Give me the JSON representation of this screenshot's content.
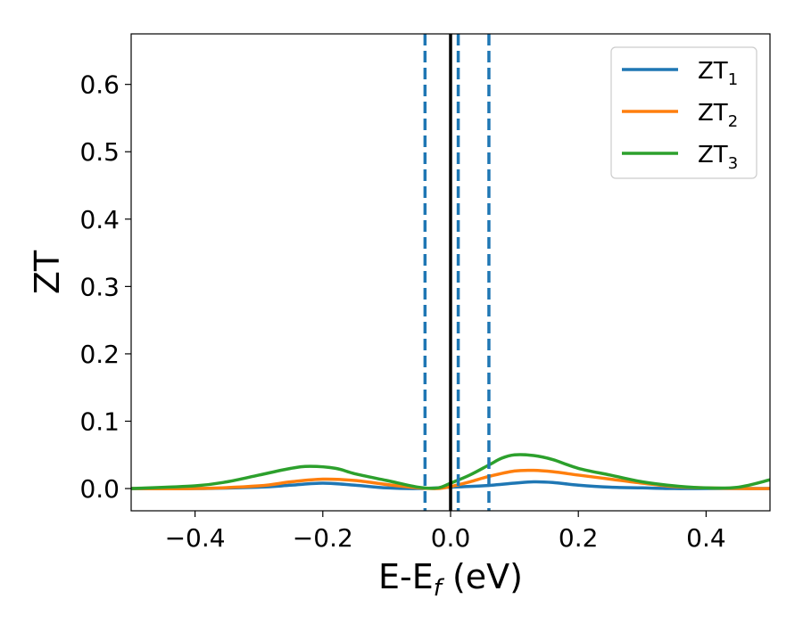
{
  "chart_data": {
    "type": "line",
    "xlabel": "E-E",
    "xlabel_sub": "f",
    "xlabel_unit": " (eV)",
    "ylabel": "ZT",
    "xlim": [
      -0.5,
      0.5
    ],
    "ylim": [
      -0.033,
      0.675
    ],
    "xticks": [
      -0.4,
      -0.2,
      0.0,
      0.2,
      0.4
    ],
    "xtick_labels": [
      "−0.4",
      "−0.2",
      "0.0",
      "0.2",
      "0.4"
    ],
    "yticks": [
      0.0,
      0.1,
      0.2,
      0.3,
      0.4,
      0.5,
      0.6
    ],
    "ytick_labels": [
      "0.0",
      "0.1",
      "0.2",
      "0.3",
      "0.4",
      "0.5",
      "0.6"
    ],
    "grid": false,
    "legend_position": "upper right",
    "reference_lines": [
      {
        "x": -0.04,
        "style": "dashed",
        "color": "#1f77b4"
      },
      {
        "x": 0.012,
        "style": "dashed",
        "color": "#1f77b4"
      },
      {
        "x": 0.06,
        "style": "dashed",
        "color": "#1f77b4"
      },
      {
        "x": 0.0,
        "style": "solid",
        "color": "#000000"
      }
    ],
    "series": [
      {
        "name": "ZT",
        "name_sub": "1",
        "color": "#1f77b4",
        "x": [
          -0.5,
          -0.4,
          -0.3,
          -0.25,
          -0.2,
          -0.15,
          -0.1,
          -0.05,
          0.0,
          0.05,
          0.1,
          0.13,
          0.16,
          0.2,
          0.25,
          0.3,
          0.35,
          0.4,
          0.45,
          0.5
        ],
        "y": [
          0.0,
          0.0,
          0.002,
          0.005,
          0.008,
          0.005,
          0.001,
          0.0,
          0.002,
          0.004,
          0.008,
          0.01,
          0.009,
          0.005,
          0.002,
          0.001,
          0.0,
          0.0,
          0.0,
          0.0
        ]
      },
      {
        "name": "ZT",
        "name_sub": "2",
        "color": "#ff7f0e",
        "x": [
          -0.5,
          -0.4,
          -0.3,
          -0.25,
          -0.2,
          -0.15,
          -0.1,
          -0.05,
          -0.02,
          0.0,
          0.03,
          0.06,
          0.1,
          0.13,
          0.16,
          0.2,
          0.25,
          0.3,
          0.35,
          0.4,
          0.45,
          0.5
        ],
        "y": [
          0.0,
          0.0,
          0.004,
          0.01,
          0.014,
          0.012,
          0.006,
          0.001,
          0.0,
          0.003,
          0.01,
          0.018,
          0.026,
          0.027,
          0.025,
          0.02,
          0.014,
          0.008,
          0.003,
          0.001,
          0.0,
          0.0
        ]
      },
      {
        "name": "ZT",
        "name_sub": "3",
        "color": "#2ca02c",
        "x": [
          -0.5,
          -0.4,
          -0.35,
          -0.3,
          -0.25,
          -0.22,
          -0.18,
          -0.15,
          -0.1,
          -0.05,
          -0.02,
          0.0,
          0.03,
          0.06,
          0.08,
          0.1,
          0.13,
          0.16,
          0.2,
          0.25,
          0.3,
          0.35,
          0.4,
          0.45,
          0.5
        ],
        "y": [
          0.0,
          0.004,
          0.01,
          0.02,
          0.03,
          0.033,
          0.03,
          0.022,
          0.012,
          0.002,
          0.001,
          0.008,
          0.02,
          0.035,
          0.045,
          0.05,
          0.049,
          0.043,
          0.03,
          0.02,
          0.01,
          0.004,
          0.001,
          0.002,
          0.013
        ]
      }
    ]
  }
}
